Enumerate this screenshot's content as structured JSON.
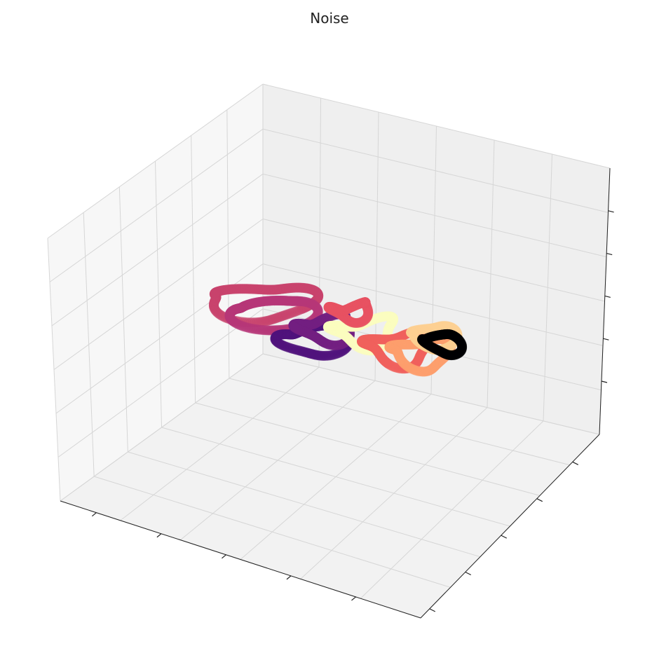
{
  "chart_data": {
    "type": "scatter",
    "projection": "3d",
    "title": "Noise",
    "xlabel": "",
    "ylabel": "",
    "zlabel": "",
    "tick_labels_visible": false,
    "grid": true,
    "colormap": "magma",
    "series": [
      {
        "cx": -0.35,
        "cy": -0.15,
        "cz": 0.3,
        "r": 0.32,
        "tilt": 0.2,
        "phase": 0.0,
        "color": "#c8446e",
        "n": 260
      },
      {
        "cx": -0.3,
        "cy": -0.1,
        "cz": 0.18,
        "r": 0.26,
        "tilt": 0.35,
        "phase": 1.2,
        "color": "#b73779",
        "n": 240
      },
      {
        "cx": -0.1,
        "cy": 0.0,
        "cz": -0.05,
        "r": 0.22,
        "tilt": 0.5,
        "phase": 0.6,
        "color": "#51127c",
        "n": 240
      },
      {
        "cx": 0.0,
        "cy": -0.05,
        "cz": 0.1,
        "r": 0.18,
        "tilt": 0.8,
        "phase": 2.0,
        "color": "#721f81",
        "n": 220
      },
      {
        "cx": 0.15,
        "cy": 0.1,
        "cz": 0.05,
        "r": 0.2,
        "tilt": 0.6,
        "phase": 0.3,
        "color": "#fcfdbf",
        "n": 240
      },
      {
        "cx": 0.3,
        "cy": 0.2,
        "cz": -0.1,
        "r": 0.22,
        "tilt": 0.9,
        "phase": 1.7,
        "color": "#f1605d",
        "n": 240
      },
      {
        "cx": 0.4,
        "cy": 0.25,
        "cz": -0.15,
        "r": 0.2,
        "tilt": 1.1,
        "phase": 0.9,
        "color": "#fe9f6d",
        "n": 260
      },
      {
        "cx": 0.45,
        "cy": 0.3,
        "cz": 0.0,
        "r": 0.16,
        "tilt": 1.3,
        "phase": 2.5,
        "color": "#fecf92",
        "n": 220
      },
      {
        "cx": 0.5,
        "cy": 0.3,
        "cz": -0.05,
        "r": 0.14,
        "tilt": 1.5,
        "phase": 0.4,
        "color": "#000004",
        "n": 200
      },
      {
        "cx": 0.1,
        "cy": 0.05,
        "cz": 0.25,
        "r": 0.12,
        "tilt": 0.4,
        "phase": 1.0,
        "color": "#e75263",
        "n": 180
      }
    ]
  }
}
